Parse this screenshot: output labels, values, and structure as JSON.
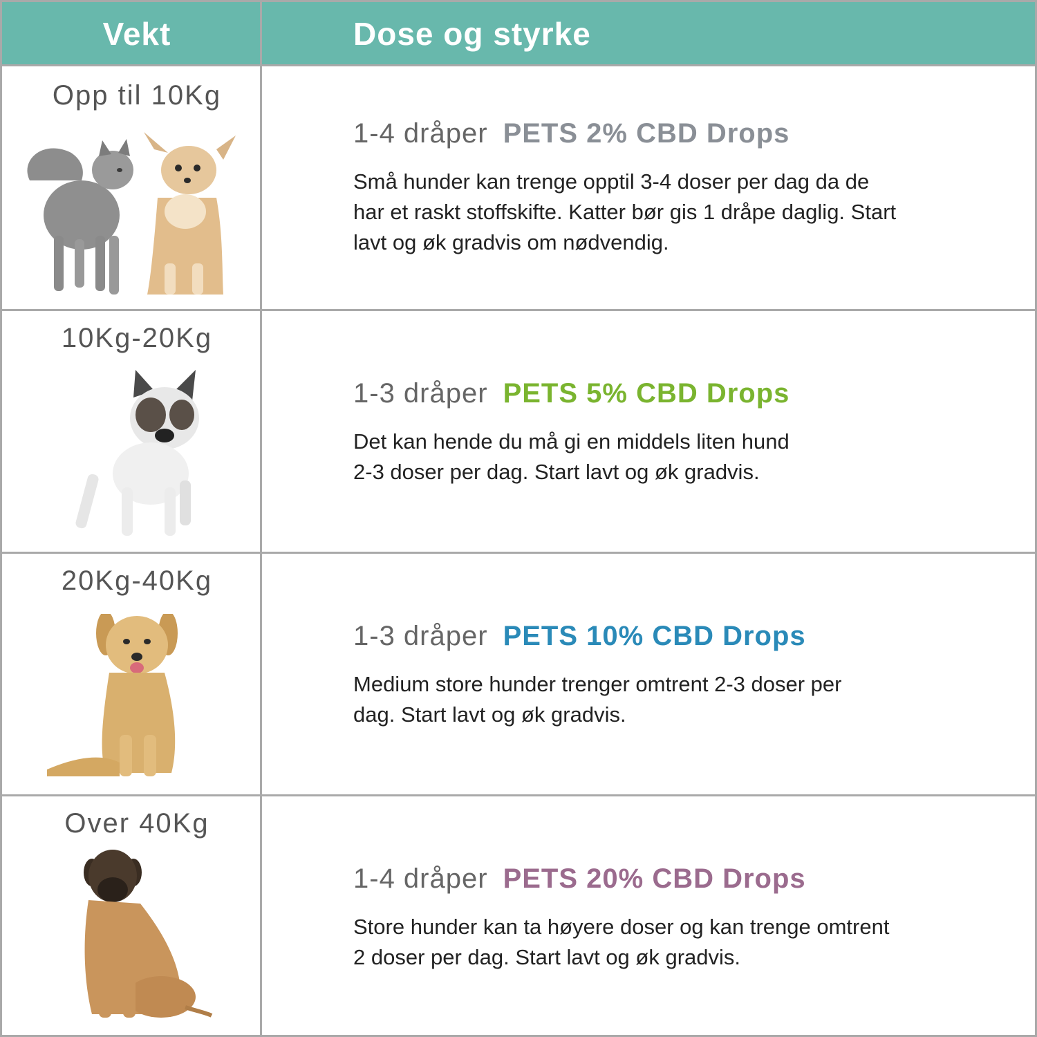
{
  "header": {
    "col1": "Vekt",
    "col2": "Dose og styrke",
    "color": "#68b8ac"
  },
  "rows": [
    {
      "weight": "Opp til 10Kg",
      "drops": "1-4 dråper",
      "product": "PETS 2% CBD Drops",
      "product_color": "#8a8f96",
      "desc_lines": [
        "Små hunder kan trenge opptil 3-4 doser per dag da de",
        "har et raskt stoffskifte. Katter bør gis 1 dråpe daglig. Start",
        "lavt og øk gradvis om nødvendig."
      ],
      "image": "cat-and-chihuahua"
    },
    {
      "weight": "10Kg-20Kg",
      "drops": "1-3 dråper",
      "product": "PETS 5% CBD Drops",
      "product_color": "#7ab42f",
      "desc_lines": [
        "Det kan hende du må gi en middels liten hund",
        "2-3 doser per dag. Start lavt og øk gradvis."
      ],
      "image": "french-bulldog"
    },
    {
      "weight": "20Kg-40Kg",
      "drops": "1-3 dråper",
      "product": "PETS 10% CBD Drops",
      "product_color": "#2a8ab8",
      "desc_lines": [
        "Medium store hunder trenger omtrent 2-3 doser per",
        "dag. Start lavt og øk gradvis."
      ],
      "image": "golden-retriever"
    },
    {
      "weight": "Over 40Kg",
      "drops": "1-4 dråper",
      "product": "PETS 20% CBD Drops",
      "product_color": "#9b6b8e",
      "desc_lines": [
        "Store hunder kan ta høyere doser og kan trenge omtrent",
        "2 doser per dag. Start lavt og øk gradvis."
      ],
      "image": "mastiff"
    }
  ]
}
